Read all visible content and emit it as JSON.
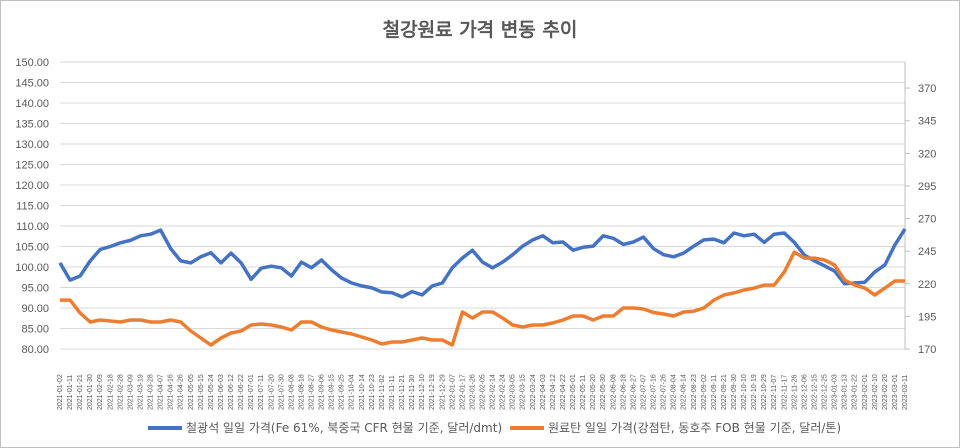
{
  "chart_data": {
    "type": "line",
    "title": "철강원료 가격 변동 추이",
    "xlabel": "",
    "ylabel": "",
    "ylim": [
      80,
      150
    ],
    "y2lim": [
      170,
      390
    ],
    "yticks": [
      "80.00",
      "85.00",
      "90.00",
      "95.00",
      "100.00",
      "105.00",
      "110.00",
      "115.00",
      "120.00",
      "125.00",
      "130.00",
      "135.00",
      "140.00",
      "145.00",
      "150.00"
    ],
    "y2ticks": [
      "170",
      "195",
      "220",
      "245",
      "270",
      "295",
      "320",
      "345",
      "370"
    ],
    "grid": true,
    "legend_position": "bottom",
    "x": [
      "2021-01-02",
      "2021-01-11",
      "2021-01-21",
      "2021-01-30",
      "2021-02-09",
      "2021-02-18",
      "2021-02-28",
      "2021-03-09",
      "2021-03-19",
      "2021-03-28",
      "2021-04-07",
      "2021-04-16",
      "2021-04-26",
      "2021-05-05",
      "2021-05-15",
      "2021-05-24",
      "2021-06-03",
      "2021-06-12",
      "2021-06-22",
      "2021-07-01",
      "2021-07-11",
      "2021-07-20",
      "2021-07-30",
      "2021-08-08",
      "2021-08-18",
      "2021-08-27",
      "2021-09-06",
      "2021-09-15",
      "2021-09-25",
      "2021-10-04",
      "2021-10-14",
      "2021-10-23",
      "2021-11-02",
      "2021-11-11",
      "2021-11-21",
      "2021-11-30",
      "2021-12-10",
      "2021-12-19",
      "2021-12-29",
      "2022-01-07",
      "2022-01-17",
      "2022-01-26",
      "2022-02-05",
      "2022-02-14",
      "2022-02-24",
      "2022-03-05",
      "2022-03-15",
      "2022-03-24",
      "2022-04-03",
      "2022-04-12",
      "2022-04-22",
      "2022-05-01",
      "2022-05-11",
      "2022-05-20",
      "2022-05-30",
      "2022-06-08",
      "2022-06-18",
      "2022-06-27",
      "2022-07-07",
      "2022-07-16",
      "2022-07-26",
      "2022-08-04",
      "2022-08-14",
      "2022-08-23",
      "2022-09-02",
      "2022-09-11",
      "2022-09-21",
      "2022-09-30",
      "2022-10-10",
      "2022-10-19",
      "2022-10-29",
      "2022-11-07",
      "2022-11-17",
      "2022-11-26",
      "2022-12-06",
      "2022-12-15",
      "2022-12-25",
      "2023-01-03",
      "2023-01-13",
      "2023-01-22",
      "2023-02-01",
      "2023-02-10",
      "2023-02-20",
      "2023-03-01",
      "2023-03-11"
    ],
    "series": [
      {
        "name": "철광석 일일 가격(Fe 61%, 북중국 CFR 현물 기준, 달러/dmt)",
        "axis": "left",
        "color": "#4472c4",
        "values": [
          101.0,
          96.8,
          97.8,
          101.5,
          104.3,
          105.0,
          105.9,
          106.5,
          107.6,
          108.0,
          109.0,
          104.5,
          101.5,
          101.0,
          102.5,
          103.5,
          101.0,
          103.4,
          101.0,
          97.0,
          99.7,
          100.2,
          99.8,
          97.8,
          101.2,
          99.8,
          101.7,
          99.3,
          97.3,
          96.1,
          95.4,
          94.9,
          93.9,
          93.7,
          92.7,
          94.0,
          93.2,
          95.4,
          96.1,
          99.8,
          102.2,
          104.1,
          101.2,
          99.8,
          101.2,
          103.0,
          105.1,
          106.6,
          107.6,
          105.9,
          106.1,
          104.1,
          104.8,
          105.1,
          107.6,
          107.0,
          105.5,
          106.1,
          107.3,
          104.5,
          103.0,
          102.5,
          103.4,
          105.1,
          106.6,
          106.8,
          105.9,
          108.3,
          107.6,
          108.0,
          106.0,
          108.0,
          108.3,
          106.0,
          102.9,
          101.5,
          100.3,
          99.0,
          95.9,
          96.1,
          96.3,
          98.8,
          100.5,
          105.4,
          109.3
        ]
      },
      {
        "name": "원료탄 일일 가격(강점탄, 동호주 FOB 현물 기준, 달러/톤)",
        "axis": "right",
        "color": "#ed7d31",
        "values": [
          207.5,
          207.5,
          197.6,
          190.7,
          192.2,
          191.5,
          190.7,
          192.2,
          192.2,
          190.7,
          190.7,
          192.2,
          190.7,
          183.8,
          178.4,
          173.1,
          178.4,
          182.3,
          183.8,
          188.4,
          189.2,
          188.4,
          186.9,
          184.6,
          190.7,
          190.7,
          186.9,
          184.6,
          183.0,
          181.5,
          179.2,
          176.9,
          173.8,
          175.4,
          175.4,
          176.9,
          178.4,
          176.9,
          176.9,
          173.1,
          198.4,
          193.8,
          198.4,
          198.4,
          193.8,
          188.4,
          186.9,
          188.4,
          188.4,
          190.0,
          192.2,
          195.3,
          195.3,
          192.2,
          195.3,
          195.3,
          201.4,
          201.4,
          200.7,
          198.0,
          196.8,
          195.3,
          198.4,
          199.0,
          201.4,
          207.5,
          211.4,
          213.0,
          215.2,
          216.7,
          219.0,
          219.0,
          229.0,
          244.3,
          239.7,
          239.7,
          238.2,
          234.4,
          222.9,
          219.0,
          216.7,
          211.4,
          216.7,
          222.1,
          222.1
        ]
      }
    ]
  }
}
